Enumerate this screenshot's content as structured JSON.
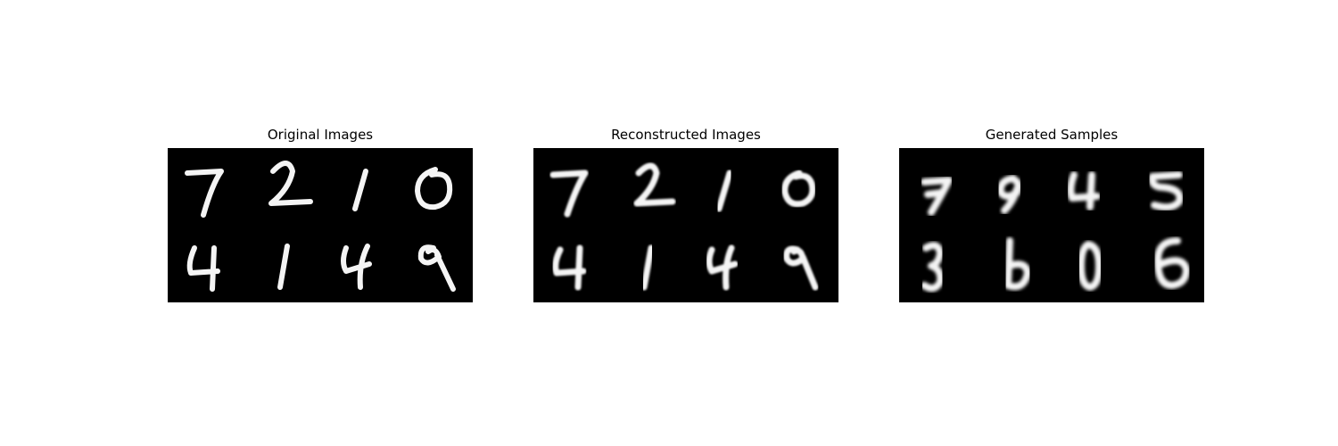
{
  "panels": [
    {
      "id": "original",
      "title": "Original Images",
      "grid": {
        "rows": 2,
        "cols": 4,
        "digits": [
          "7",
          "2",
          "1",
          "0",
          "4",
          "1",
          "4",
          "9"
        ]
      }
    },
    {
      "id": "reconstructed",
      "title": "Reconstructed Images",
      "grid": {
        "rows": 2,
        "cols": 4,
        "digits": [
          "7",
          "2",
          "1",
          "0",
          "4",
          "1",
          "4",
          "9"
        ]
      }
    },
    {
      "id": "generated",
      "title": "Generated Samples",
      "grid": {
        "rows": 2,
        "cols": 4,
        "digits": [
          "7",
          "9",
          "4",
          "5",
          "3",
          "6",
          "0",
          "6"
        ]
      }
    }
  ],
  "colors": {
    "background": "#ffffff",
    "image_bg": "#000000",
    "stroke": "#f4f4f4"
  }
}
